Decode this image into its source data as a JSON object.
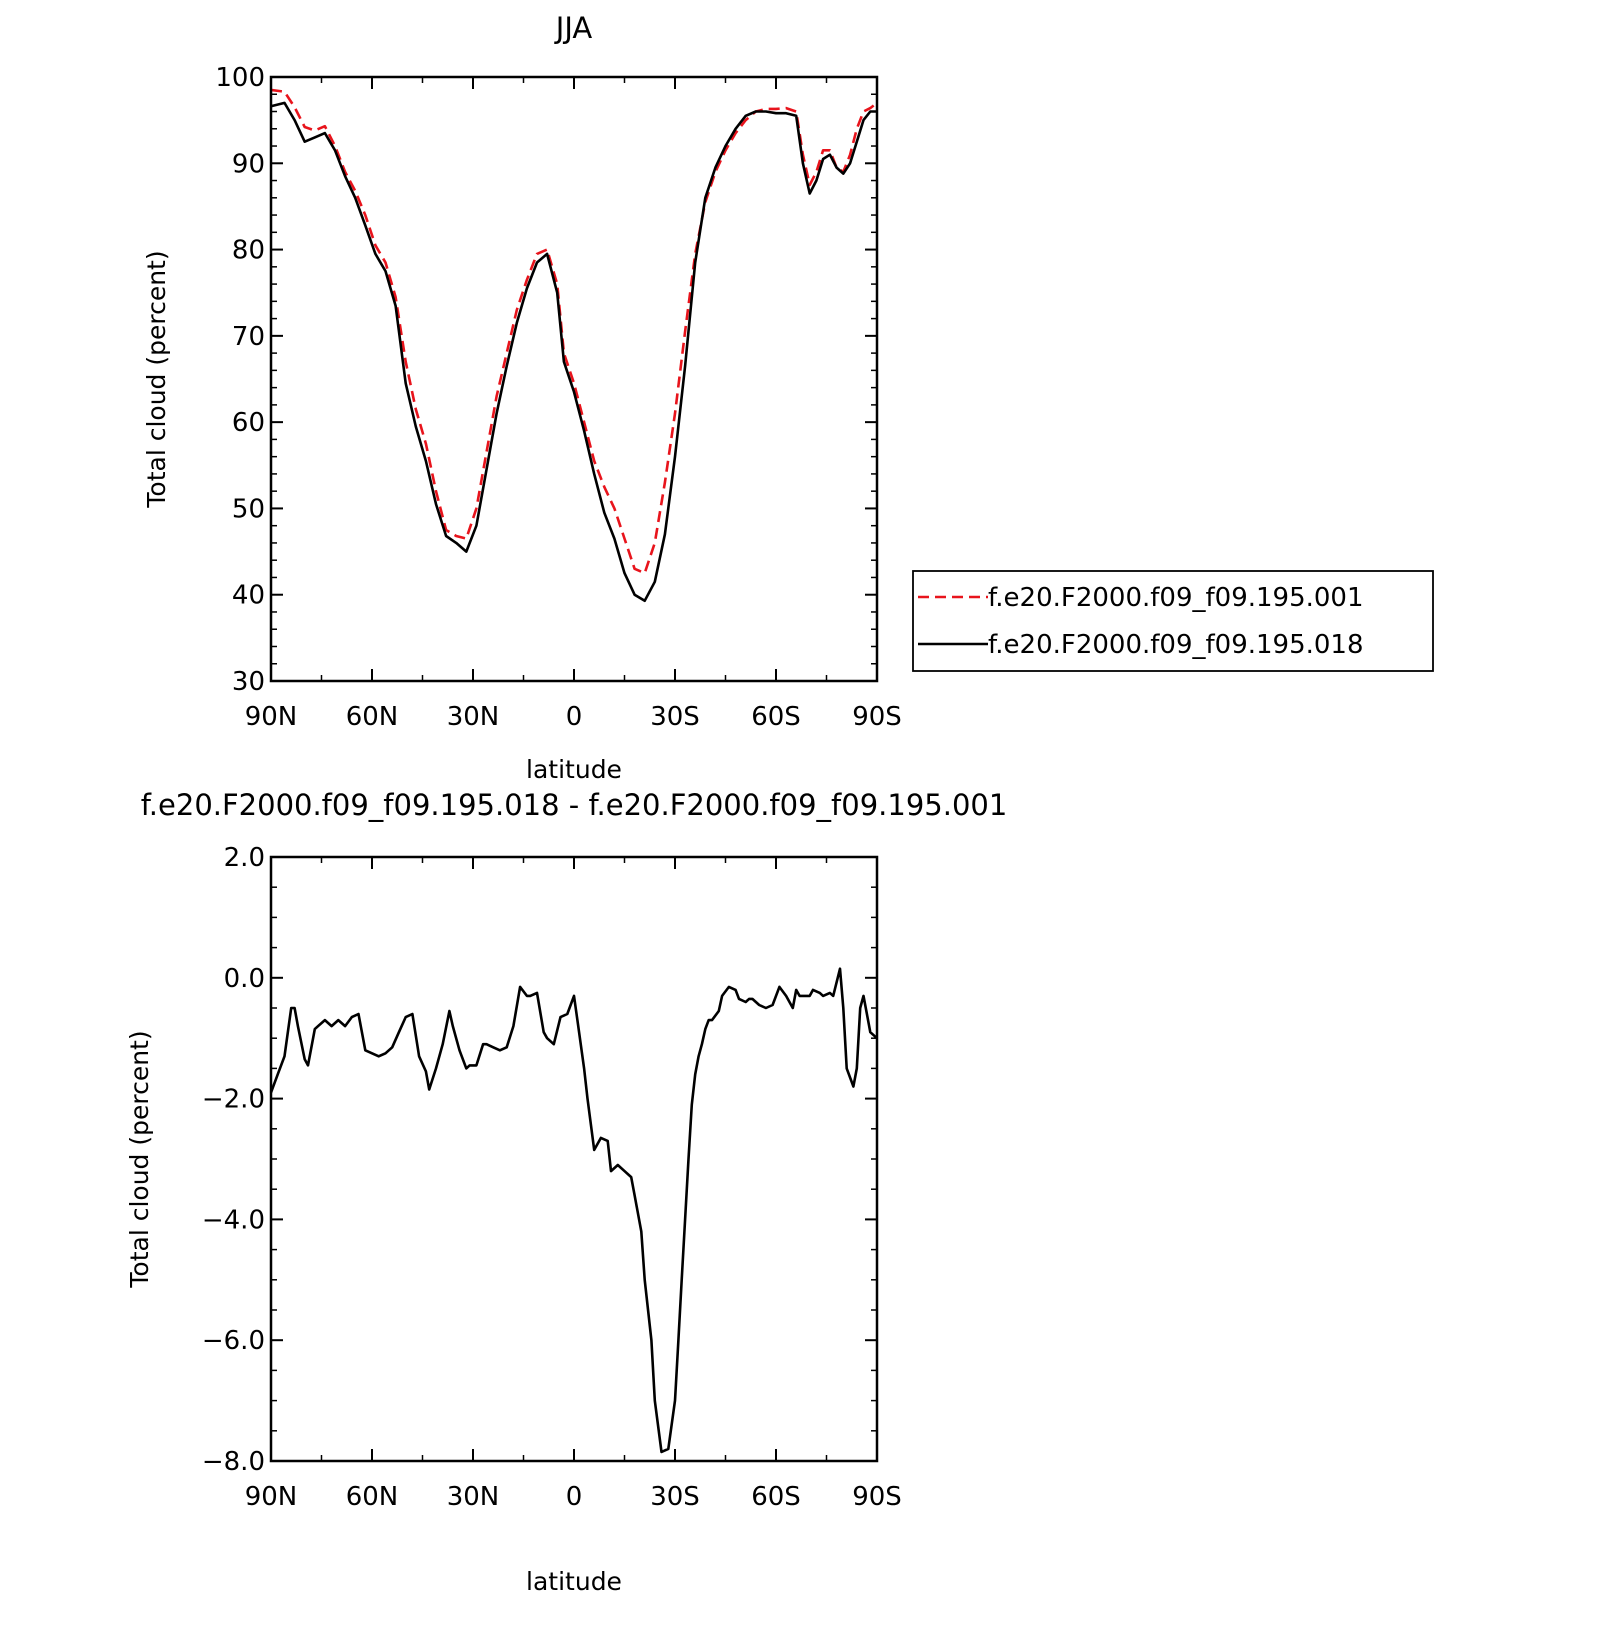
{
  "chart_data": [
    {
      "type": "line",
      "title": "JJA",
      "xlabel": "latitude",
      "ylabel": "Total cloud (percent)",
      "xlim": [
        90,
        -90
      ],
      "ylim": [
        30,
        100
      ],
      "x_ticks": [
        {
          "value": 90,
          "label": "90N"
        },
        {
          "value": 60,
          "label": "60N"
        },
        {
          "value": 30,
          "label": "30N"
        },
        {
          "value": 0,
          "label": "0"
        },
        {
          "value": -30,
          "label": "30S"
        },
        {
          "value": -60,
          "label": "60S"
        },
        {
          "value": -90,
          "label": "90S"
        }
      ],
      "y_ticks": [
        {
          "value": 100,
          "label": "100"
        },
        {
          "value": 90,
          "label": "90"
        },
        {
          "value": 80,
          "label": "80"
        },
        {
          "value": 70,
          "label": "70"
        },
        {
          "value": 60,
          "label": "60"
        },
        {
          "value": 50,
          "label": "50"
        },
        {
          "value": 40,
          "label": "40"
        },
        {
          "value": 30,
          "label": "30"
        }
      ],
      "legend": "right",
      "series": [
        {
          "name": "f.e20.F2000.f09_f09.195.001",
          "color": "#e8141c",
          "dash": "dashed",
          "x": [
            90,
            86,
            83,
            80,
            77,
            74,
            71,
            68,
            65,
            62,
            59,
            56,
            53,
            50,
            47,
            44,
            41,
            38,
            35,
            32,
            29,
            26,
            23,
            20,
            17,
            14,
            11,
            8,
            5,
            3,
            0,
            -3,
            -6,
            -9,
            -12,
            -15,
            -18,
            -21,
            -24,
            -27,
            -30,
            -33,
            -36,
            -39,
            -42,
            -45,
            -48,
            -51,
            -54,
            -57,
            -60,
            -63,
            -66,
            -68,
            -70,
            -72,
            -74,
            -76,
            -78,
            -80,
            -82,
            -84,
            -86,
            -88,
            -90
          ],
          "y": [
            98.5,
            98.3,
            96.5,
            94.2,
            93.8,
            94.3,
            92.0,
            89.0,
            86.8,
            84.0,
            80.5,
            78.5,
            74.5,
            67.0,
            61.5,
            57.5,
            52.0,
            47.5,
            46.8,
            46.5,
            50.0,
            56.5,
            63.0,
            68.0,
            73.0,
            76.5,
            79.5,
            80.0,
            76.0,
            68.0,
            64.5,
            60.0,
            55.5,
            52.5,
            50.0,
            46.5,
            43.0,
            42.5,
            46.0,
            53.0,
            61.0,
            70.5,
            79.5,
            85.5,
            89.0,
            91.5,
            93.5,
            95.0,
            96.0,
            96.3,
            96.3,
            96.4,
            96.0,
            91.0,
            87.5,
            89.0,
            91.5,
            91.5,
            89.5,
            89.0,
            91.0,
            94.0,
            96.0,
            96.4,
            97.0
          ]
        },
        {
          "name": "f.e20.F2000.f09_f09.195.018",
          "color": "#000000",
          "dash": "solid",
          "x": [
            90,
            86,
            83,
            80,
            77,
            74,
            71,
            68,
            65,
            62,
            59,
            56,
            53,
            50,
            47,
            44,
            41,
            38,
            35,
            32,
            29,
            26,
            23,
            20,
            17,
            14,
            11,
            8,
            5,
            3,
            0,
            -3,
            -6,
            -9,
            -12,
            -15,
            -18,
            -21,
            -24,
            -27,
            -30,
            -33,
            -36,
            -39,
            -42,
            -45,
            -48,
            -51,
            -54,
            -57,
            -60,
            -63,
            -66,
            -68,
            -70,
            -72,
            -74,
            -76,
            -78,
            -80,
            -82,
            -84,
            -86,
            -88,
            -90
          ],
          "y": [
            96.6,
            97.0,
            95.0,
            92.5,
            93.0,
            93.5,
            91.5,
            88.5,
            86.0,
            82.8,
            79.5,
            77.5,
            73.5,
            64.5,
            59.5,
            55.5,
            50.5,
            46.8,
            46.0,
            45.0,
            48.0,
            54.5,
            61.0,
            66.5,
            71.5,
            75.5,
            78.5,
            79.5,
            75.0,
            67.0,
            63.5,
            59.0,
            54.0,
            49.5,
            46.5,
            42.5,
            40.0,
            39.3,
            41.5,
            47.0,
            56.0,
            66.5,
            78.5,
            86.0,
            89.5,
            92.0,
            94.0,
            95.5,
            96.0,
            96.0,
            95.8,
            95.8,
            95.5,
            90.0,
            86.5,
            88.0,
            90.5,
            91.0,
            89.5,
            88.8,
            90.0,
            92.5,
            95.0,
            96.0,
            96.0
          ]
        }
      ]
    },
    {
      "type": "line",
      "title": "f.e20.F2000.f09_f09.195.018 - f.e20.F2000.f09_f09.195.001",
      "xlabel": "latitude",
      "ylabel": "Total cloud (percent)",
      "xlim": [
        90,
        -90
      ],
      "ylim": [
        -8,
        2
      ],
      "x_ticks": [
        {
          "value": 90,
          "label": "90N"
        },
        {
          "value": 60,
          "label": "60N"
        },
        {
          "value": 30,
          "label": "30N"
        },
        {
          "value": 0,
          "label": "0"
        },
        {
          "value": -30,
          "label": "30S"
        },
        {
          "value": -60,
          "label": "60S"
        },
        {
          "value": -90,
          "label": "90S"
        }
      ],
      "y_ticks": [
        {
          "value": 2,
          "label": "2.0"
        },
        {
          "value": 0,
          "label": "0.0"
        },
        {
          "value": -2,
          "label": "−2.0"
        },
        {
          "value": -4,
          "label": "−4.0"
        },
        {
          "value": -6,
          "label": "−6.0"
        },
        {
          "value": -8,
          "label": "−8.0"
        }
      ],
      "series": [
        {
          "color": "#000000",
          "dash": "solid",
          "x": [
            90,
            88,
            86,
            84,
            83,
            82,
            80,
            79,
            77,
            76,
            74,
            72,
            70,
            68,
            66,
            64,
            62,
            60,
            58,
            56,
            54,
            52,
            50,
            48,
            46,
            44,
            43,
            41,
            39,
            37,
            36,
            34,
            32,
            31,
            29,
            27,
            26,
            24,
            22,
            20,
            18,
            16,
            14,
            13,
            11,
            9,
            8,
            6,
            4,
            2,
            0,
            -1,
            -3,
            -4,
            -6,
            -8,
            -10,
            -11,
            -13,
            -15,
            -17,
            -18,
            -20,
            -21,
            -23,
            -24,
            -26,
            -28,
            -30,
            -31,
            -32,
            -33,
            -34,
            -35,
            -36,
            -37,
            -38,
            -39,
            -40,
            -41,
            -43,
            -44,
            -46,
            -48,
            -49,
            -51,
            -52,
            -53,
            -55,
            -57,
            -59,
            -61,
            -63,
            -65,
            -66,
            -67,
            -69,
            -70,
            -71,
            -73,
            -74,
            -76,
            -77,
            -79,
            -80,
            -81,
            -83,
            -84,
            -85,
            -86,
            -87,
            -88,
            -90
          ],
          "y": [
            -1.9,
            -1.6,
            -1.3,
            -0.5,
            -0.5,
            -0.8,
            -1.35,
            -1.45,
            -0.85,
            -0.8,
            -0.7,
            -0.8,
            -0.7,
            -0.8,
            -0.65,
            -0.6,
            -1.2,
            -1.25,
            -1.3,
            -1.25,
            -1.15,
            -0.9,
            -0.65,
            -0.6,
            -1.3,
            -1.55,
            -1.85,
            -1.5,
            -1.1,
            -0.55,
            -0.8,
            -1.2,
            -1.5,
            -1.45,
            -1.45,
            -1.1,
            -1.1,
            -1.15,
            -1.2,
            -1.15,
            -0.8,
            -0.15,
            -0.3,
            -0.3,
            -0.25,
            -0.9,
            -1.0,
            -1.1,
            -0.65,
            -0.6,
            -0.3,
            -0.7,
            -1.5,
            -2.0,
            -2.85,
            -2.65,
            -2.7,
            -3.2,
            -3.1,
            -3.2,
            -3.3,
            -3.6,
            -4.2,
            -5.0,
            -6.0,
            -7.0,
            -7.85,
            -7.8,
            -7.0,
            -6.0,
            -5.0,
            -4.0,
            -3.0,
            -2.1,
            -1.6,
            -1.3,
            -1.1,
            -0.85,
            -0.7,
            -0.7,
            -0.55,
            -0.3,
            -0.15,
            -0.2,
            -0.35,
            -0.4,
            -0.35,
            -0.35,
            -0.45,
            -0.5,
            -0.45,
            -0.15,
            -0.3,
            -0.5,
            -0.2,
            -0.3,
            -0.3,
            -0.3,
            -0.2,
            -0.25,
            -0.3,
            -0.25,
            -0.3,
            0.15,
            -0.5,
            -1.5,
            -1.8,
            -1.5,
            -0.5,
            -0.3,
            -0.6,
            -0.9,
            -1.0
          ]
        }
      ]
    }
  ]
}
